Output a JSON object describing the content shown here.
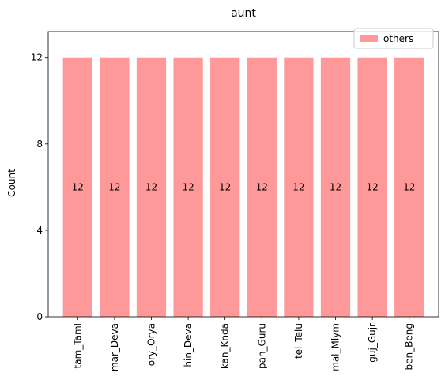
{
  "chart_data": {
    "type": "bar",
    "title": "aunt",
    "xlabel": "",
    "ylabel": "Count",
    "categories": [
      "tam_Taml",
      "mar_Deva",
      "ory_Orya",
      "hin_Deva",
      "kan_Knda",
      "pan_Guru",
      "tel_Telu",
      "mal_Mlym",
      "guj_Gujr",
      "ben_Beng"
    ],
    "series": [
      {
        "name": "others",
        "values": [
          12,
          12,
          12,
          12,
          12,
          12,
          12,
          12,
          12,
          12
        ],
        "color": "#ff9999"
      }
    ],
    "ylim": [
      0,
      13.2
    ],
    "yticks": [
      0,
      4,
      8,
      12
    ],
    "grid": false,
    "legend_position": "top-right"
  }
}
